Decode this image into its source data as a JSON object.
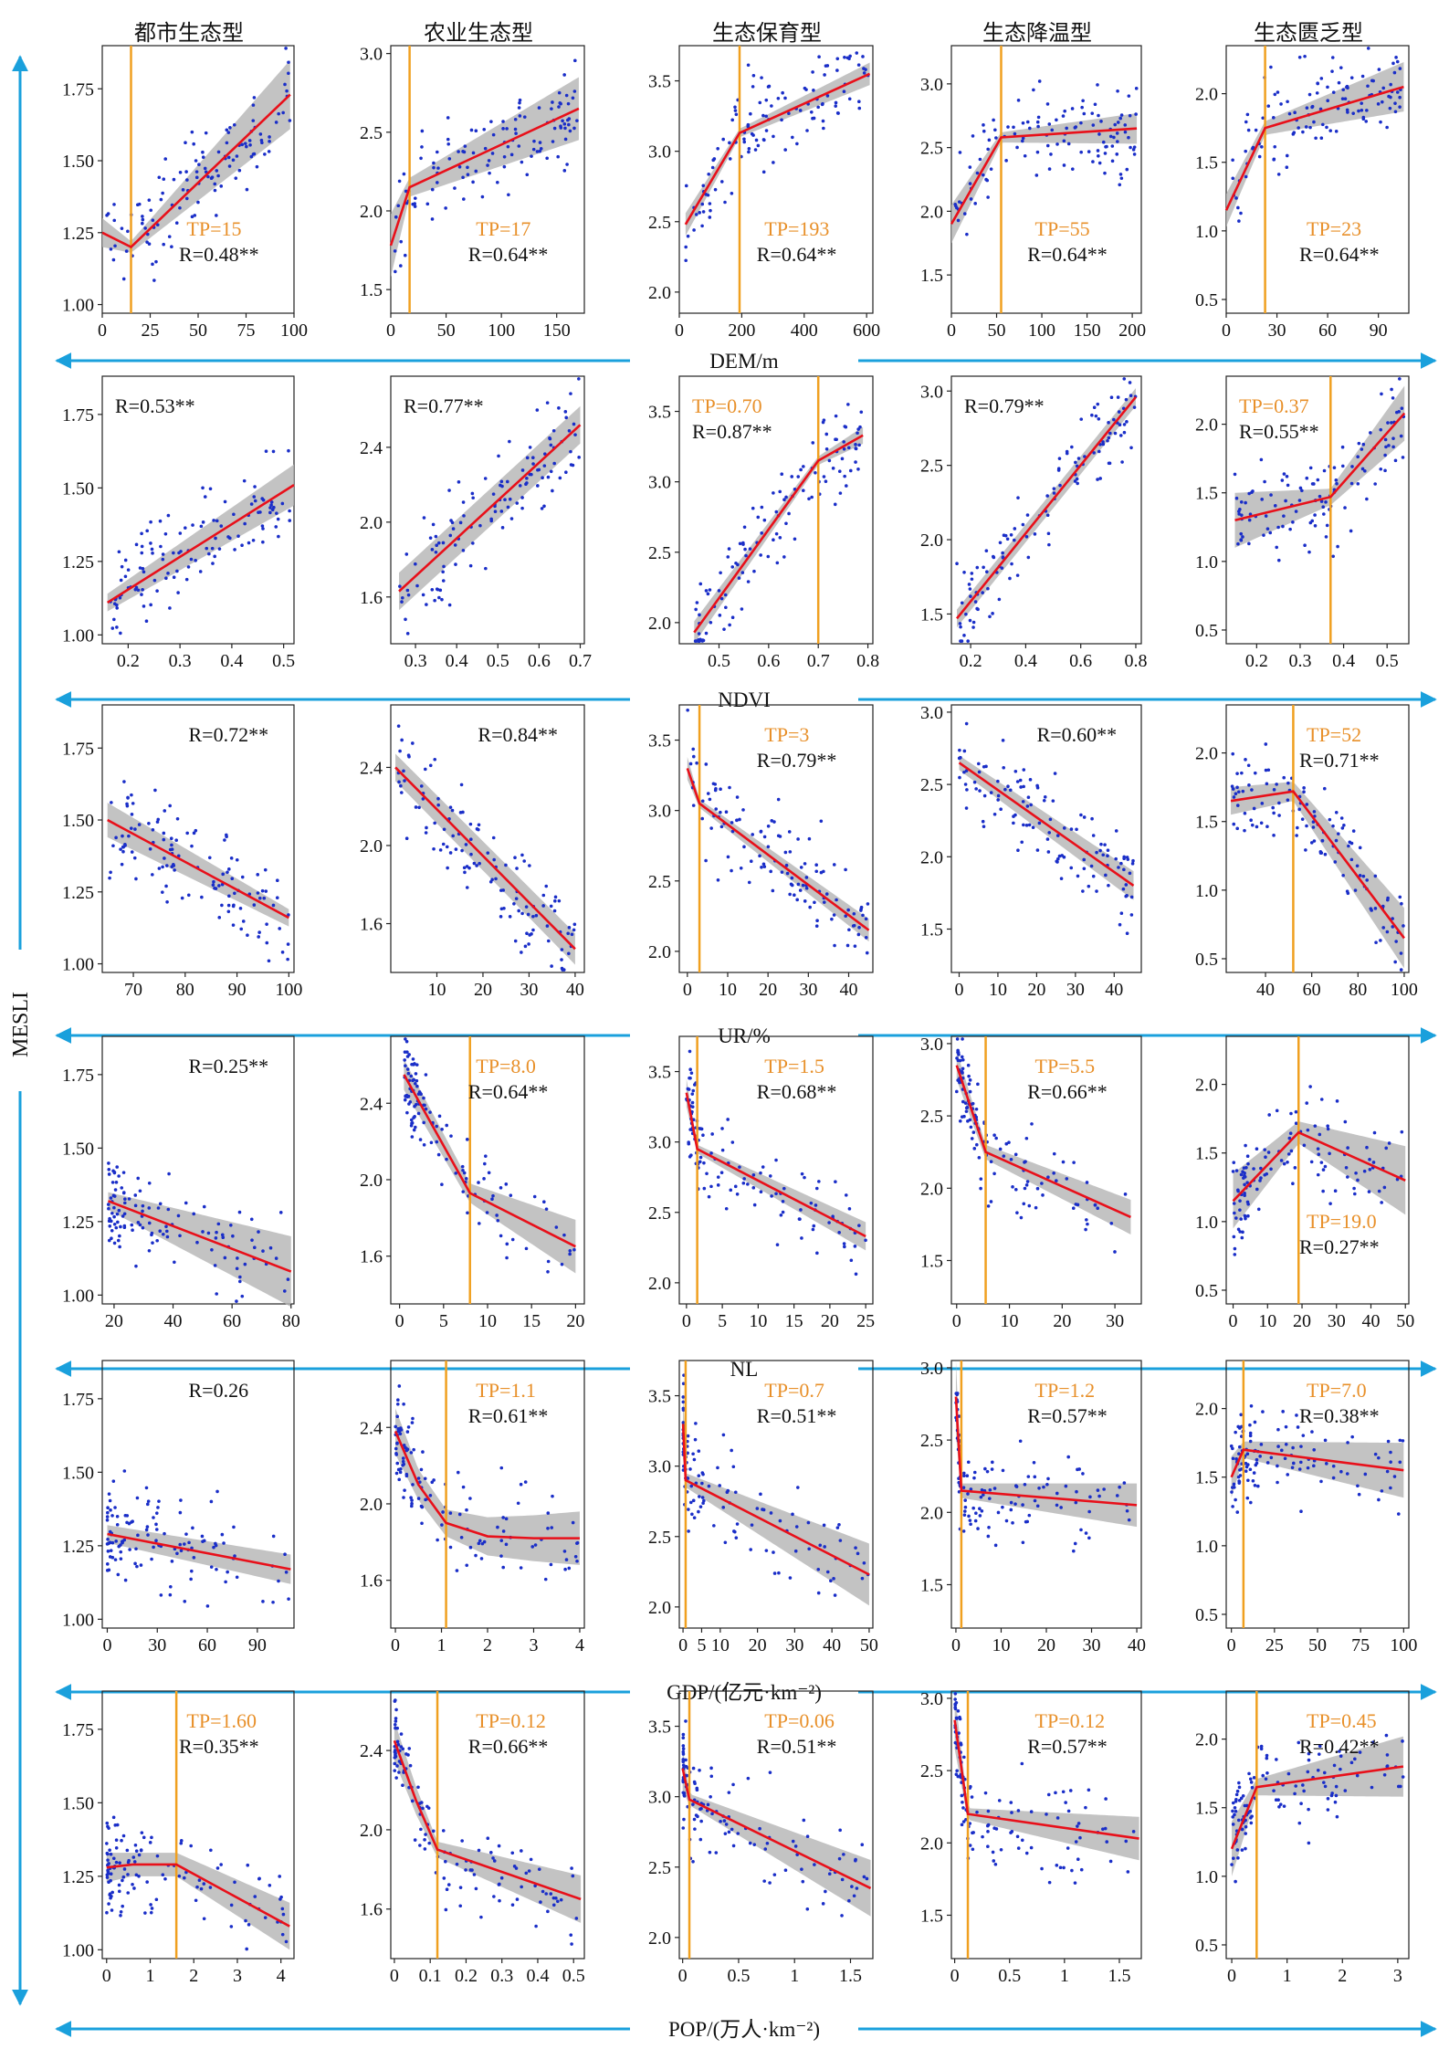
{
  "figure": {
    "y_axis_title": "MESLI",
    "colors": {
      "points": "#1a2ec8",
      "fit": "#e8101a",
      "ci_band": "#b4b4b4",
      "threshold": "#f0a020",
      "tp_text": "#e8902a",
      "arrow": "#1aa0dc"
    },
    "column_titles": [
      "都市生态型",
      "农业生态型",
      "生态保育型",
      "生态降温型",
      "生态匮乏型"
    ],
    "row_labels": [
      "DEM/m",
      "NDVI",
      "UR/%",
      "NL",
      "GDP/(亿元·km⁻²)",
      "POP/(万人·km⁻²)"
    ]
  },
  "chart_data": [
    {
      "type": "scatter",
      "row": 0,
      "col": 0,
      "xlim": [
        0,
        100
      ],
      "ylim": [
        0.97,
        1.9
      ],
      "xticks": [
        0,
        25,
        50,
        75,
        100
      ],
      "yticks": [
        1.0,
        1.25,
        1.5,
        1.75
      ],
      "tp_label": "TP=15",
      "r_label": "R=0.48**",
      "fit": [
        [
          0,
          1.25
        ],
        [
          15,
          1.2
        ],
        [
          98,
          1.73
        ]
      ],
      "ci": [
        0.05,
        0.02,
        0.12
      ]
    },
    {
      "type": "scatter",
      "row": 0,
      "col": 1,
      "xlim": [
        0,
        175
      ],
      "ylim": [
        1.35,
        3.05
      ],
      "xticks": [
        0,
        50,
        100,
        150
      ],
      "yticks": [
        1.5,
        2.0,
        2.5,
        3.0
      ],
      "tp_label": "TP=17",
      "r_label": "R=0.64**",
      "fit": [
        [
          0,
          1.78
        ],
        [
          17,
          2.15
        ],
        [
          170,
          2.65
        ]
      ],
      "ci": [
        0.2,
        0.06,
        0.2
      ]
    },
    {
      "type": "scatter",
      "row": 0,
      "col": 2,
      "xlim": [
        0,
        620
      ],
      "ylim": [
        1.85,
        3.75
      ],
      "xticks": [
        0,
        200,
        400,
        600
      ],
      "yticks": [
        2.0,
        2.5,
        3.0,
        3.5
      ],
      "tp_label": "TP=193",
      "r_label": "R=0.64**",
      "fit": [
        [
          20,
          2.48
        ],
        [
          193,
          3.13
        ],
        [
          610,
          3.55
        ]
      ],
      "ci": [
        0.08,
        0.03,
        0.08
      ]
    },
    {
      "type": "scatter",
      "row": 0,
      "col": 3,
      "xlim": [
        0,
        210
      ],
      "ylim": [
        1.2,
        3.3
      ],
      "xticks": [
        0,
        50,
        100,
        150,
        200
      ],
      "yticks": [
        1.5,
        2.0,
        2.5,
        3.0
      ],
      "tp_label": "TP=55",
      "r_label": "R=0.64**",
      "fit": [
        [
          0,
          1.9
        ],
        [
          55,
          2.58
        ],
        [
          205,
          2.65
        ]
      ],
      "ci": [
        0.15,
        0.04,
        0.12
      ]
    },
    {
      "type": "scatter",
      "row": 0,
      "col": 4,
      "xlim": [
        0,
        108
      ],
      "ylim": [
        0.4,
        2.35
      ],
      "xticks": [
        0,
        30,
        60,
        90
      ],
      "yticks": [
        0.5,
        1.0,
        1.5,
        2.0
      ],
      "tp_label": "TP=23",
      "r_label": "R=0.64**",
      "fit": [
        [
          0,
          1.15
        ],
        [
          23,
          1.75
        ],
        [
          105,
          2.05
        ]
      ],
      "ci": [
        0.12,
        0.05,
        0.18
      ]
    },
    {
      "type": "scatter",
      "row": 1,
      "col": 0,
      "xlim": [
        0.15,
        0.52
      ],
      "ylim": [
        0.97,
        1.88
      ],
      "xticks": [
        0.2,
        0.3,
        0.4,
        0.5
      ],
      "yticks": [
        1.0,
        1.25,
        1.5,
        1.75
      ],
      "tp_label": "",
      "r_label": "R=0.53**",
      "fit": [
        [
          0.16,
          1.11
        ],
        [
          0.52,
          1.51
        ]
      ],
      "ci": [
        0.03,
        0.07
      ]
    },
    {
      "type": "scatter",
      "row": 1,
      "col": 1,
      "xlim": [
        0.24,
        0.71
      ],
      "ylim": [
        1.35,
        2.78
      ],
      "xticks": [
        0.3,
        0.4,
        0.5,
        0.6,
        0.7
      ],
      "yticks": [
        1.6,
        2.0,
        2.4
      ],
      "tp_label": "",
      "r_label": "R=0.77**",
      "fit": [
        [
          0.26,
          1.63
        ],
        [
          0.7,
          2.52
        ]
      ],
      "ci": [
        0.1,
        0.1
      ]
    },
    {
      "type": "scatter",
      "row": 1,
      "col": 2,
      "xlim": [
        0.42,
        0.81
      ],
      "ylim": [
        1.85,
        3.75
      ],
      "xticks": [
        0.5,
        0.6,
        0.7,
        0.8
      ],
      "yticks": [
        2.0,
        2.5,
        3.0,
        3.5
      ],
      "tp_label": "TP=0.70",
      "r_label": "R=0.87**",
      "fit": [
        [
          0.45,
          1.93
        ],
        [
          0.7,
          3.15
        ],
        [
          0.79,
          3.33
        ]
      ],
      "ci": [
        0.08,
        0.03,
        0.06
      ]
    },
    {
      "type": "scatter",
      "row": 1,
      "col": 3,
      "xlim": [
        0.13,
        0.82
      ],
      "ylim": [
        1.3,
        3.1
      ],
      "xticks": [
        0.2,
        0.4,
        0.6,
        0.8
      ],
      "yticks": [
        1.5,
        2.0,
        2.5,
        3.0
      ],
      "tp_label": "",
      "r_label": "R=0.79**",
      "fit": [
        [
          0.15,
          1.47
        ],
        [
          0.8,
          2.96
        ]
      ],
      "ci": [
        0.06,
        0.06
      ]
    },
    {
      "type": "scatter",
      "row": 1,
      "col": 4,
      "xlim": [
        0.13,
        0.55
      ],
      "ylim": [
        0.4,
        2.35
      ],
      "xticks": [
        0.2,
        0.3,
        0.4,
        0.5
      ],
      "yticks": [
        0.5,
        1.0,
        1.5,
        2.0
      ],
      "tp_label": "TP=0.37",
      "r_label": "R=0.55**",
      "fit": [
        [
          0.15,
          1.3
        ],
        [
          0.37,
          1.47
        ],
        [
          0.54,
          2.08
        ]
      ],
      "ci": [
        0.2,
        0.06,
        0.2
      ]
    },
    {
      "type": "scatter",
      "row": 2,
      "col": 0,
      "xlim": [
        64,
        101
      ],
      "ylim": [
        0.97,
        1.9
      ],
      "xticks": [
        70,
        80,
        90,
        100
      ],
      "yticks": [
        1.0,
        1.25,
        1.5,
        1.75
      ],
      "tp_label": "",
      "r_label": "R=0.72**",
      "fit": [
        [
          65,
          1.5
        ],
        [
          100,
          1.16
        ]
      ],
      "ci": [
        0.06,
        0.03
      ]
    },
    {
      "type": "scatter",
      "row": 2,
      "col": 1,
      "xlim": [
        0,
        42
      ],
      "ylim": [
        1.35,
        2.72
      ],
      "xticks": [
        10,
        20,
        30,
        40
      ],
      "yticks": [
        1.6,
        2.0,
        2.4
      ],
      "tp_label": "",
      "r_label": "R=0.84**",
      "fit": [
        [
          1,
          2.4
        ],
        [
          40,
          1.47
        ]
      ],
      "ci": [
        0.07,
        0.08
      ]
    },
    {
      "type": "scatter",
      "row": 2,
      "col": 2,
      "xlim": [
        -2,
        46
      ],
      "ylim": [
        1.85,
        3.75
      ],
      "xticks": [
        0,
        10,
        20,
        30,
        40
      ],
      "yticks": [
        2.0,
        2.5,
        3.0,
        3.5
      ],
      "tp_label": "TP=3",
      "r_label": "R=0.79**",
      "fit": [
        [
          0,
          3.3
        ],
        [
          3,
          3.05
        ],
        [
          45,
          2.15
        ]
      ],
      "ci": [
        0.08,
        0.03,
        0.08
      ]
    },
    {
      "type": "scatter",
      "row": 2,
      "col": 3,
      "xlim": [
        -2,
        47
      ],
      "ylim": [
        1.2,
        3.05
      ],
      "xticks": [
        0,
        10,
        20,
        30,
        40
      ],
      "yticks": [
        1.5,
        2.0,
        2.5,
        3.0
      ],
      "tp_label": "",
      "r_label": "R=0.60**",
      "fit": [
        [
          0,
          2.65
        ],
        [
          45,
          1.8
        ]
      ],
      "ci": [
        0.05,
        0.1
      ]
    },
    {
      "type": "scatter",
      "row": 2,
      "col": 4,
      "xlim": [
        23,
        102
      ],
      "ylim": [
        0.4,
        2.35
      ],
      "xticks": [
        40,
        60,
        80,
        100
      ],
      "yticks": [
        0.5,
        1.0,
        1.5,
        2.0
      ],
      "tp_label": "TP=52",
      "r_label": "R=0.71**",
      "fit": [
        [
          25,
          1.65
        ],
        [
          52,
          1.72
        ],
        [
          100,
          0.65
        ]
      ],
      "ci": [
        0.1,
        0.07,
        0.22
      ]
    },
    {
      "type": "scatter",
      "row": 3,
      "col": 0,
      "xlim": [
        16,
        81
      ],
      "ylim": [
        0.97,
        1.88
      ],
      "xticks": [
        20,
        40,
        60,
        80
      ],
      "yticks": [
        1.0,
        1.25,
        1.5,
        1.75
      ],
      "tp_label": "",
      "r_label": "R=0.25**",
      "fit": [
        [
          18,
          1.32
        ],
        [
          80,
          1.08
        ]
      ],
      "ci": [
        0.03,
        0.12
      ]
    },
    {
      "type": "scatter",
      "row": 3,
      "col": 1,
      "xlim": [
        -1,
        21
      ],
      "ylim": [
        1.35,
        2.75
      ],
      "xticks": [
        0,
        5,
        10,
        15,
        20
      ],
      "yticks": [
        1.6,
        2.0,
        2.4
      ],
      "tp_label": "TP=8.0",
      "r_label": "R=0.64**",
      "fit": [
        [
          0.5,
          2.55
        ],
        [
          8,
          1.93
        ],
        [
          20,
          1.65
        ]
      ],
      "ci": [
        0.08,
        0.05,
        0.14
      ]
    },
    {
      "type": "scatter",
      "row": 3,
      "col": 2,
      "xlim": [
        -1,
        26
      ],
      "ylim": [
        1.85,
        3.75
      ],
      "xticks": [
        0,
        5,
        10,
        15,
        20,
        25
      ],
      "yticks": [
        2.0,
        2.5,
        3.0,
        3.5
      ],
      "tp_label": "TP=1.5",
      "r_label": "R=0.68**",
      "fit": [
        [
          0,
          3.35
        ],
        [
          1.5,
          2.95
        ],
        [
          25,
          2.33
        ]
      ],
      "ci": [
        0.1,
        0.03,
        0.1
      ]
    },
    {
      "type": "scatter",
      "row": 3,
      "col": 3,
      "xlim": [
        -1,
        35
      ],
      "ylim": [
        1.2,
        3.05
      ],
      "xticks": [
        0,
        10,
        20,
        30
      ],
      "yticks": [
        1.5,
        2.0,
        2.5,
        3.0
      ],
      "tp_label": "TP=5.5",
      "r_label": "R=0.66**",
      "fit": [
        [
          0,
          2.85
        ],
        [
          5.5,
          2.25
        ],
        [
          33,
          1.8
        ]
      ],
      "ci": [
        0.1,
        0.05,
        0.12
      ]
    },
    {
      "type": "scatter",
      "row": 3,
      "col": 4,
      "xlim": [
        -2,
        51
      ],
      "ylim": [
        0.4,
        2.35
      ],
      "xticks": [
        0,
        10,
        20,
        30,
        40,
        50
      ],
      "yticks": [
        0.5,
        1.0,
        1.5,
        2.0
      ],
      "tp_label": "TP=19.0",
      "r_label": "R=0.27**",
      "fit": [
        [
          0,
          1.15
        ],
        [
          19,
          1.65
        ],
        [
          50,
          1.3
        ]
      ],
      "ci": [
        0.2,
        0.08,
        0.25
      ]
    },
    {
      "type": "scatter",
      "row": 4,
      "col": 0,
      "xlim": [
        -3,
        112
      ],
      "ylim": [
        0.97,
        1.88
      ],
      "xticks": [
        0,
        30,
        60,
        90
      ],
      "yticks": [
        1.0,
        1.25,
        1.5,
        1.75
      ],
      "tp_label": "",
      "r_label": "R=0.26",
      "fit": [
        [
          0,
          1.29
        ],
        [
          110,
          1.17
        ]
      ],
      "ci": [
        0.03,
        0.05
      ]
    },
    {
      "type": "scatter",
      "row": 4,
      "col": 1,
      "xlim": [
        -0.1,
        4.1
      ],
      "ylim": [
        1.35,
        2.75
      ],
      "xticks": [
        0,
        1,
        2,
        3,
        4
      ],
      "yticks": [
        1.6,
        2.0,
        2.4
      ],
      "tp_label": "TP=1.1",
      "r_label": "R=0.61**",
      "fit": [
        [
          0,
          2.38
        ],
        [
          0.5,
          2.1
        ],
        [
          1.1,
          1.9
        ],
        [
          2,
          1.83
        ],
        [
          3,
          1.82
        ],
        [
          4,
          1.82
        ]
      ],
      "ci": [
        0.12,
        0.08,
        0.07,
        0.1,
        0.12,
        0.14
      ]
    },
    {
      "type": "scatter",
      "row": 4,
      "col": 2,
      "xlim": [
        -1,
        51
      ],
      "ylim": [
        1.85,
        3.75
      ],
      "xticks": [
        0,
        5,
        10,
        20,
        30,
        40,
        50
      ],
      "yticks": [
        2.0,
        2.5,
        3.0,
        3.5
      ],
      "tp_label": "TP=0.7",
      "r_label": "R=0.51**",
      "fit": [
        [
          0,
          3.3
        ],
        [
          0.7,
          2.9
        ],
        [
          50,
          2.23
        ]
      ],
      "ci": [
        0.25,
        0.05,
        0.22
      ]
    },
    {
      "type": "scatter",
      "row": 4,
      "col": 3,
      "xlim": [
        -1,
        41
      ],
      "ylim": [
        1.2,
        3.05
      ],
      "xticks": [
        0,
        10,
        20,
        30,
        40
      ],
      "yticks": [
        1.5,
        2.0,
        2.5,
        3.0
      ],
      "tp_label": "TP=1.2",
      "r_label": "R=0.57**",
      "fit": [
        [
          0,
          2.8
        ],
        [
          1.2,
          2.15
        ],
        [
          40,
          2.05
        ]
      ],
      "ci": [
        0.25,
        0.05,
        0.15
      ]
    },
    {
      "type": "scatter",
      "row": 4,
      "col": 4,
      "xlim": [
        -3,
        103
      ],
      "ylim": [
        0.4,
        2.35
      ],
      "xticks": [
        0,
        25,
        50,
        75,
        100
      ],
      "yticks": [
        0.5,
        1.0,
        1.5,
        2.0
      ],
      "tp_label": "TP=7.0",
      "r_label": "R=0.38**",
      "fit": [
        [
          0,
          1.5
        ],
        [
          7,
          1.7
        ],
        [
          100,
          1.55
        ]
      ],
      "ci": [
        0.15,
        0.06,
        0.2
      ]
    },
    {
      "type": "scatter",
      "row": 5,
      "col": 0,
      "xlim": [
        -0.1,
        4.3
      ],
      "ylim": [
        0.97,
        1.88
      ],
      "xticks": [
        0,
        1,
        2,
        3,
        4
      ],
      "yticks": [
        1.0,
        1.25,
        1.5,
        1.75
      ],
      "tp_label": "TP=1.60",
      "r_label": "R=0.35**",
      "fit": [
        [
          0,
          1.28
        ],
        [
          0.6,
          1.29
        ],
        [
          1.6,
          1.29
        ],
        [
          4.2,
          1.08
        ]
      ],
      "ci": [
        0.05,
        0.04,
        0.04,
        0.08
      ]
    },
    {
      "type": "scatter",
      "row": 5,
      "col": 1,
      "xlim": [
        -0.01,
        0.53
      ],
      "ylim": [
        1.35,
        2.7
      ],
      "xticks": [
        0,
        0.1,
        0.2,
        0.3,
        0.4,
        0.5
      ],
      "yticks": [
        1.6,
        2.0,
        2.4
      ],
      "tp_label": "TP=0.12",
      "r_label": "R=0.66**",
      "fit": [
        [
          0,
          2.45
        ],
        [
          0.06,
          2.15
        ],
        [
          0.12,
          1.9
        ],
        [
          0.52,
          1.65
        ]
      ],
      "ci": [
        0.1,
        0.07,
        0.04,
        0.12
      ]
    },
    {
      "type": "scatter",
      "row": 5,
      "col": 2,
      "xlim": [
        -0.03,
        1.7
      ],
      "ylim": [
        1.85,
        3.75
      ],
      "xticks": [
        0,
        0.5,
        1.0,
        1.5
      ],
      "yticks": [
        2.0,
        2.5,
        3.0,
        3.5
      ],
      "tp_label": "TP=0.06",
      "r_label": "R=0.51**",
      "fit": [
        [
          0,
          3.2
        ],
        [
          0.06,
          2.98
        ],
        [
          1.68,
          2.35
        ]
      ],
      "ci": [
        0.15,
        0.04,
        0.2
      ]
    },
    {
      "type": "scatter",
      "row": 5,
      "col": 3,
      "xlim": [
        -0.03,
        1.7
      ],
      "ylim": [
        1.2,
        3.05
      ],
      "xticks": [
        0,
        0.5,
        1.0,
        1.5
      ],
      "yticks": [
        1.5,
        2.0,
        2.5,
        3.0
      ],
      "tp_label": "TP=0.12",
      "r_label": "R=0.57**",
      "fit": [
        [
          0,
          2.85
        ],
        [
          0.12,
          2.2
        ],
        [
          1.68,
          2.03
        ]
      ],
      "ci": [
        0.2,
        0.04,
        0.15
      ]
    },
    {
      "type": "scatter",
      "row": 5,
      "col": 4,
      "xlim": [
        -0.1,
        3.2
      ],
      "ylim": [
        0.4,
        2.35
      ],
      "xticks": [
        0,
        1,
        2,
        3
      ],
      "yticks": [
        0.5,
        1.0,
        1.5,
        2.0
      ],
      "tp_label": "TP=0.45",
      "r_label": "R=0.42**",
      "fit": [
        [
          0,
          1.2
        ],
        [
          0.45,
          1.65
        ],
        [
          3.1,
          1.8
        ]
      ],
      "ci": [
        0.2,
        0.06,
        0.22
      ]
    }
  ]
}
